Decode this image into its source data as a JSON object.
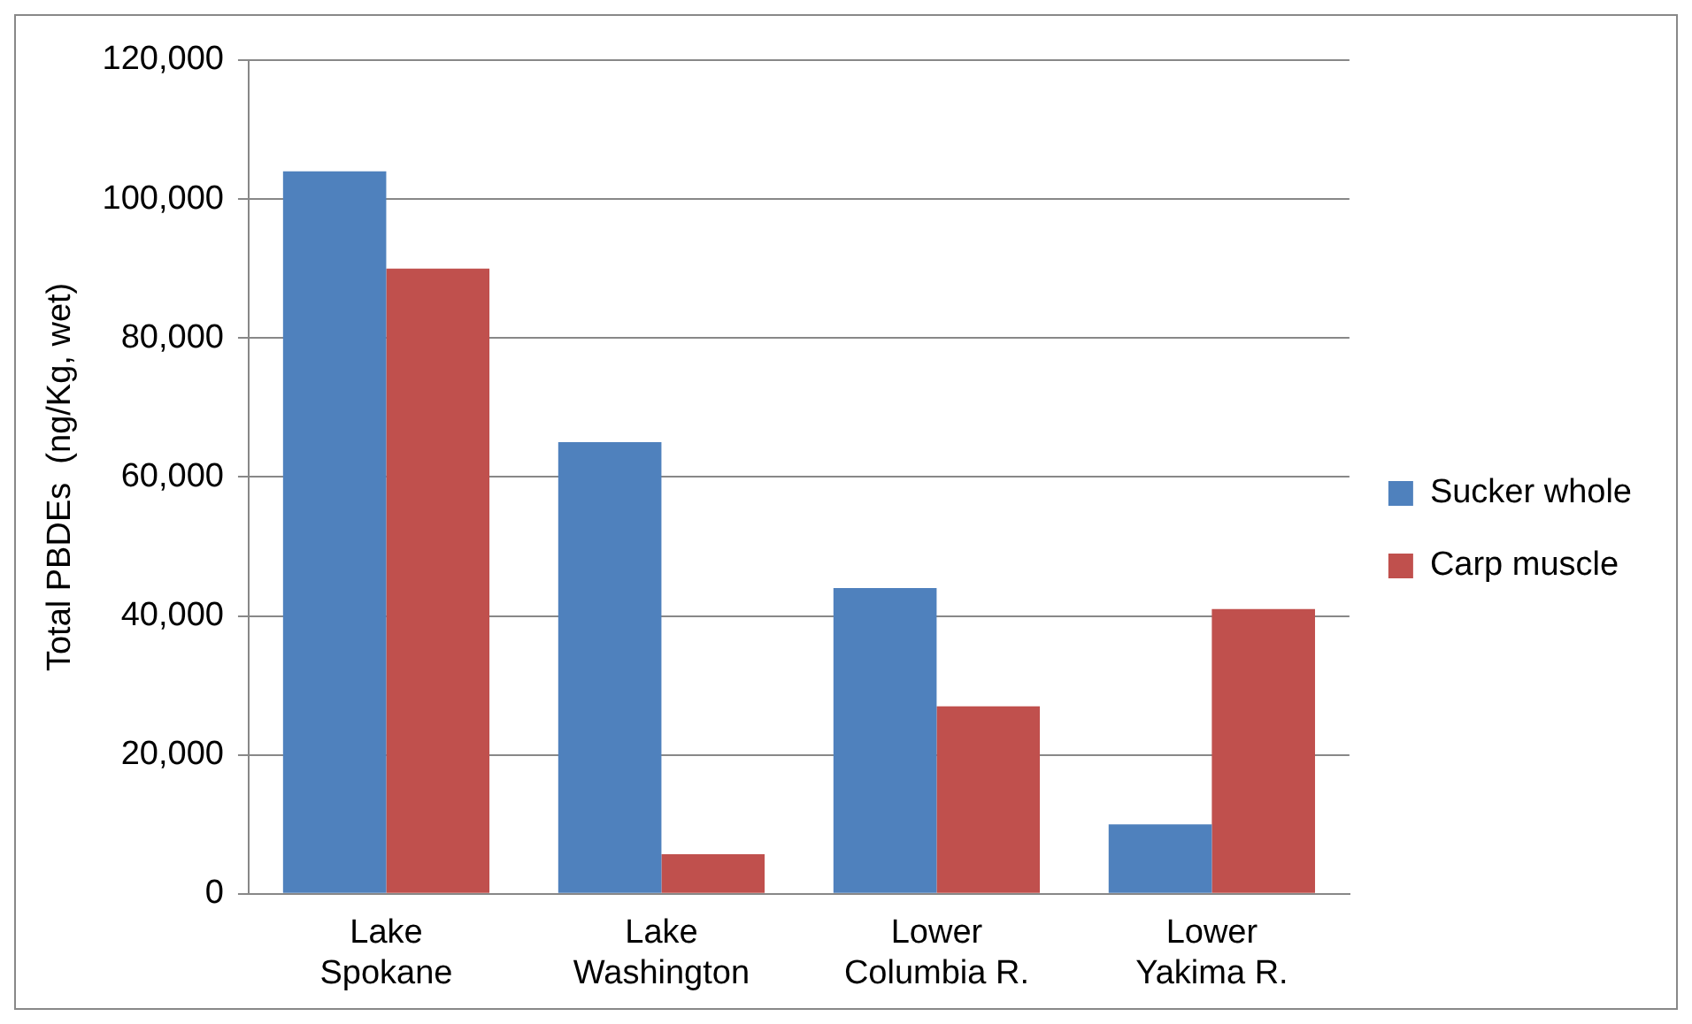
{
  "chart_data": {
    "type": "bar",
    "ylabel": "Total PBDEs  (ng/Kg, wet)",
    "categories": [
      "Lake Spokane",
      "Lake Washington",
      "Lower Columbia R.",
      "Lower Yakima R."
    ],
    "series": [
      {
        "name": "Sucker whole",
        "color": "#4f81bd",
        "values": [
          104000,
          65000,
          44000,
          10000
        ]
      },
      {
        "name": "Carp muscle",
        "color": "#c0504d",
        "values": [
          90000,
          5700,
          27000,
          41000
        ]
      }
    ],
    "ylim": [
      0,
      120000
    ],
    "yticks": [
      {
        "value": 0,
        "label": "0"
      },
      {
        "value": 20000,
        "label": "20,000"
      },
      {
        "value": 40000,
        "label": "40,000"
      },
      {
        "value": 60000,
        "label": "60,000"
      },
      {
        "value": 80000,
        "label": "80,000"
      },
      {
        "value": 100000,
        "label": "100,000"
      },
      {
        "value": 120000,
        "label": "120,000"
      }
    ],
    "grid": "y",
    "legend": "right"
  }
}
